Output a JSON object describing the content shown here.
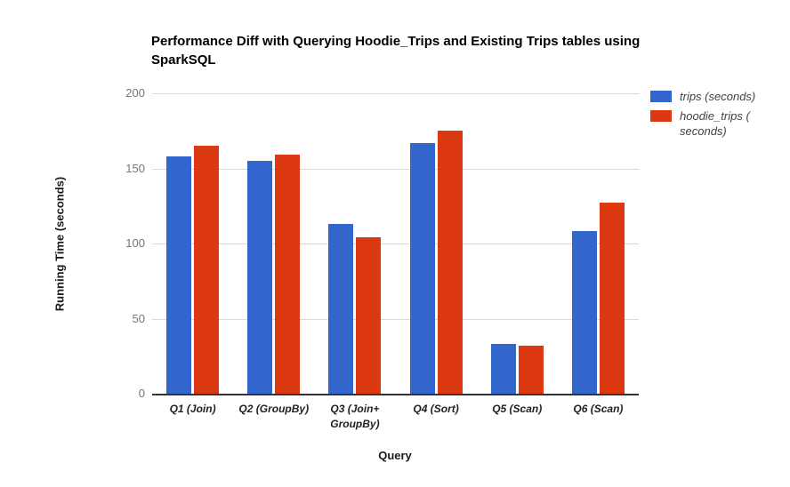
{
  "header": {
    "title": "Performance Diff with Querying Hoodie_Trips and Existing Trips tables using SparkSQL"
  },
  "axes": {
    "y_title": "Running Time (seconds)",
    "x_title": "Query"
  },
  "legend": {
    "items": [
      {
        "label": "trips (seconds)",
        "color": "#3366cc"
      },
      {
        "label": "hoodie_trips (\nseconds)",
        "color": "#dc3912"
      }
    ]
  },
  "chart_data": {
    "type": "bar",
    "title": "Performance Diff with Querying Hoodie_Trips and Existing Trips tables using SparkSQL",
    "xlabel": "Query",
    "ylabel": "Running Time (seconds)",
    "categories": [
      "Q1 (Join)",
      "Q2 (GroupBy)",
      "Q3 (Join+\nGroupBy)",
      "Q4 (Sort)",
      "Q5 (Scan)",
      "Q6 (Scan)"
    ],
    "series": [
      {
        "name": "trips (seconds)",
        "color": "#3366cc",
        "values": [
          158,
          155,
          113,
          167,
          33,
          108
        ]
      },
      {
        "name": "hoodie_trips (seconds)",
        "color": "#dc3912",
        "values": [
          165,
          159,
          104,
          175,
          32,
          127
        ]
      }
    ],
    "ylim": [
      0,
      200
    ],
    "yticks": [
      0,
      50,
      100,
      150,
      200
    ],
    "grid": true,
    "legend_position": "right"
  }
}
